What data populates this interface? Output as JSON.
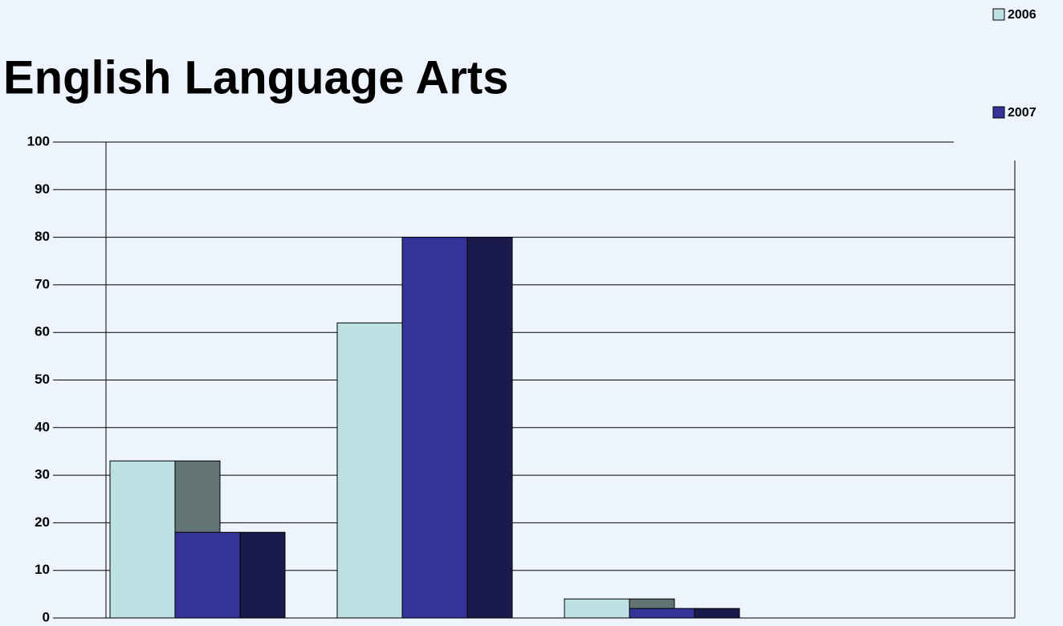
{
  "chart_data": {
    "type": "bar3d",
    "title": "English Language Arts",
    "categories": [
      null,
      null,
      null,
      null
    ],
    "series": [
      {
        "name": "2006",
        "color": "#bde0e3",
        "side_color": "#627474",
        "values": [
          33,
          62,
          4,
          0
        ]
      },
      {
        "name": "2007",
        "color": "#34339a",
        "side_color": "#1b1a4c",
        "values": [
          18,
          80,
          2,
          0
        ]
      }
    ],
    "ylim": [
      0,
      100
    ],
    "yticks": [
      0,
      10,
      20,
      30,
      40,
      50,
      60,
      70,
      80,
      90,
      100
    ],
    "grid": true
  }
}
